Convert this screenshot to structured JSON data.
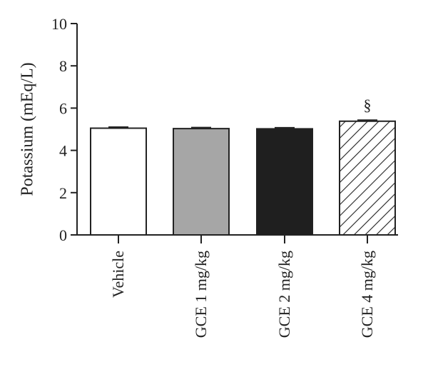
{
  "chart_data": {
    "type": "bar",
    "title": "",
    "xlabel": "",
    "ylabel": "Potassium (mEq/L)",
    "ylim": [
      0,
      10
    ],
    "yticks": [
      0,
      2,
      4,
      6,
      8,
      10
    ],
    "categories": [
      "Vehicle",
      "GCE 1 mg/kg",
      "GCE 2 mg/kg",
      "GCE 4 mg/kg"
    ],
    "values": [
      5.05,
      5.03,
      5.02,
      5.38
    ],
    "errors": [
      0.05,
      0.05,
      0.05,
      0.05
    ],
    "fills": [
      "white",
      "gray",
      "black",
      "hatched"
    ],
    "colors": {
      "gray": "#a6a6a6",
      "black": "#1f1f1f",
      "stroke": "#222222"
    },
    "annotations": [
      {
        "category": "GCE 4 mg/kg",
        "text": "§"
      }
    ],
    "grid": false,
    "legend": "none"
  }
}
